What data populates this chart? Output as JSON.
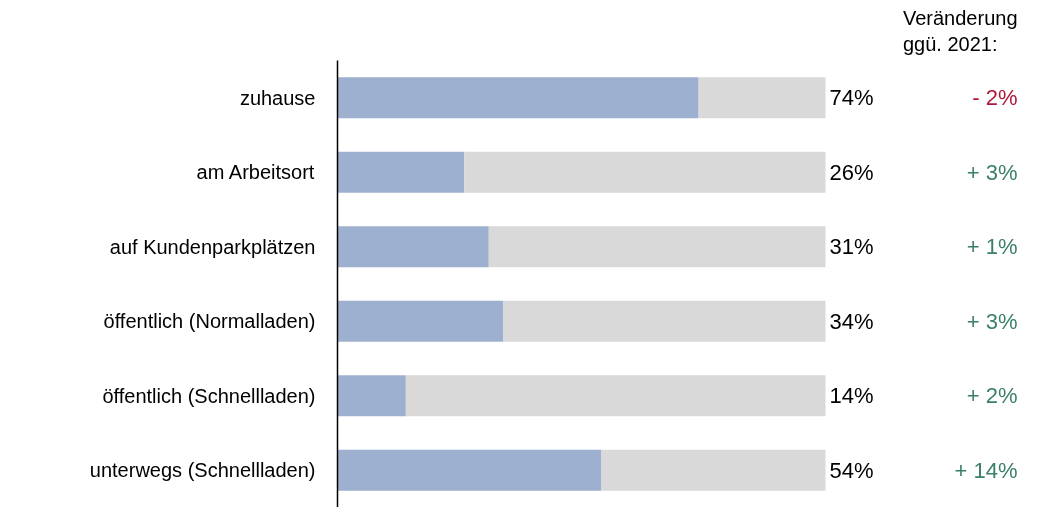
{
  "chart_data": {
    "type": "bar",
    "orientation": "horizontal",
    "stacked": true,
    "categories": [
      "zuhause",
      "am Arbeitsort",
      "auf Kundenparkplätzen",
      "öffentlich (Normalladen)",
      "öffentlich (Schnellladen)",
      "unterwegs (Schnellladen)"
    ],
    "series": [
      {
        "color": "#9db0cf",
        "values": [
          74,
          26,
          31,
          34,
          14,
          54
        ],
        "value_labels": [
          "74%",
          "26%",
          "31%",
          "34%",
          "14%",
          "54%"
        ]
      },
      {
        "color": "#d9d9d9",
        "values": [
          26,
          74,
          69,
          66,
          86,
          46
        ]
      }
    ],
    "annotations": [
      "Veränderung\nggü. 2021:",
      "- 2%",
      "+ 3%",
      "+ 1%",
      "+ 3%",
      "+ 2%",
      "+ 14%"
    ],
    "grid": false
  }
}
